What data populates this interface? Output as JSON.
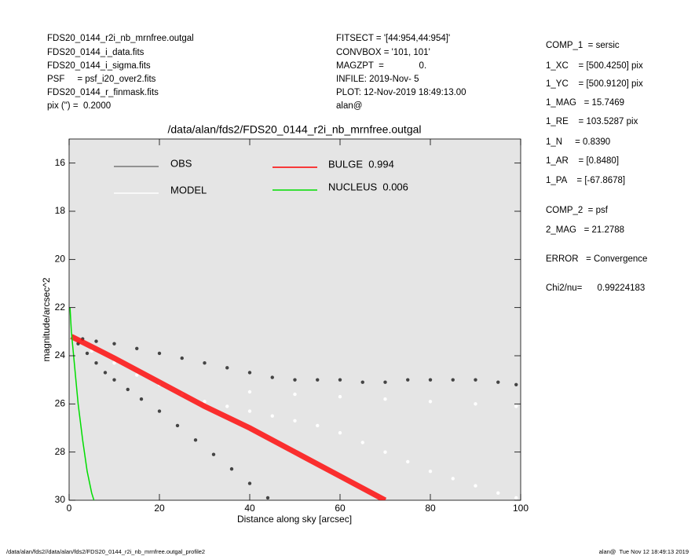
{
  "header": {
    "left": [
      "FDS20_0144_r2i_nb_mrnfree.outgal",
      "FDS20_0144_i_data.fits",
      "FDS20_0144_i_sigma.fits",
      "PSF     = psf_i20_over2.fits",
      "FDS20_0144_r_finmask.fits",
      "pix (\") =  0.2000"
    ],
    "middle": [
      "FITSECT = '[44:954,44:954]'",
      "CONVBOX = '101, 101'",
      "MAGZPT  =              0.",
      "INFILE: 2019-Nov- 5",
      "PLOT: 12-Nov-2019 18:49:13.00",
      "alan@"
    ]
  },
  "params": [
    "COMP_1  = sersic",
    "1_XC    = [500.4250] pix",
    "1_YC    = [500.9120] pix",
    "1_MAG   = 15.7469",
    "1_RE    = 103.5287 pix",
    "1_N     = 0.8390",
    "1_AR    = [0.8480]",
    "1_PA    = [-67.8678]",
    "COMP_2  = psf",
    "2_MAG   = 21.2788",
    "ERROR   = Convergence",
    "Chi2/nu=      0.99224183"
  ],
  "footer": {
    "left": "/data/alan/fds2//data/alan/fds2/FDS20_0144_r2i_nb_mrnfree.outgal_profile2",
    "right": "alan@  Tue Nov 12 18:49:13 2019"
  },
  "chart_data": {
    "type": "scatter",
    "title": "/data/alan/fds2/FDS20_0144_r2i_nb_mrnfree.outgal",
    "x_label": "Distance along sky [arcsec]",
    "y_label": "magnitude/arcsec^2",
    "xlim": [
      0,
      100
    ],
    "xticks": [
      0,
      20,
      40,
      60,
      80,
      100
    ],
    "ylim": [
      30,
      15
    ],
    "yticks": [
      16,
      18,
      20,
      22,
      24,
      26,
      28,
      30
    ],
    "background": "#e5e5e5",
    "series": [
      {
        "name": "OBS",
        "color": "#444444",
        "kind": "points",
        "x": [
          3,
          6,
          10,
          15,
          20,
          25,
          30,
          35,
          40,
          45,
          50,
          55,
          60,
          65,
          70,
          75,
          80,
          85,
          90,
          95,
          99,
          2,
          4,
          6,
          8,
          10,
          13,
          16,
          20,
          24,
          28,
          32,
          36,
          40,
          44
        ],
        "values": [
          23.3,
          23.4,
          23.5,
          23.7,
          23.9,
          24.1,
          24.3,
          24.5,
          24.7,
          24.9,
          25.0,
          25.0,
          25.0,
          25.1,
          25.1,
          25.0,
          25.0,
          25.0,
          25.0,
          25.1,
          25.2,
          23.5,
          23.9,
          24.3,
          24.7,
          25.0,
          25.4,
          25.8,
          26.3,
          26.9,
          27.5,
          28.1,
          28.7,
          29.3,
          29.9
        ]
      },
      {
        "name": "MODEL",
        "color": "#ffffff",
        "kind": "points",
        "x": [
          5,
          10,
          15,
          20,
          25,
          30,
          35,
          40,
          45,
          50,
          55,
          60,
          65,
          70,
          75,
          80,
          85,
          90,
          95,
          99,
          40,
          50,
          60,
          70,
          80,
          90,
          99
        ],
        "values": [
          23.8,
          24.3,
          24.8,
          25.2,
          25.6,
          25.9,
          26.1,
          26.3,
          26.5,
          26.7,
          26.9,
          27.2,
          27.6,
          28.0,
          28.4,
          28.8,
          29.1,
          29.4,
          29.7,
          29.9,
          25.5,
          25.6,
          25.7,
          25.8,
          25.9,
          26.0,
          26.1
        ]
      },
      {
        "name": "BULGE  0.994",
        "color": "#ff0000",
        "kind": "line",
        "x": [
          0.5,
          10,
          20,
          30,
          40,
          50,
          60,
          70
        ],
        "values": [
          23.2,
          24.1,
          25.1,
          26.1,
          27.0,
          28.0,
          29.0,
          30.0
        ]
      },
      {
        "name": "NUCLEUS  0.006",
        "color": "#00dd00",
        "kind": "line",
        "x": [
          0.2,
          0.5,
          1,
          1.5,
          2,
          3,
          4,
          5,
          5.5
        ],
        "values": [
          22.0,
          23.0,
          24.0,
          25.0,
          26.0,
          27.5,
          28.8,
          29.7,
          30.0
        ]
      }
    ]
  }
}
